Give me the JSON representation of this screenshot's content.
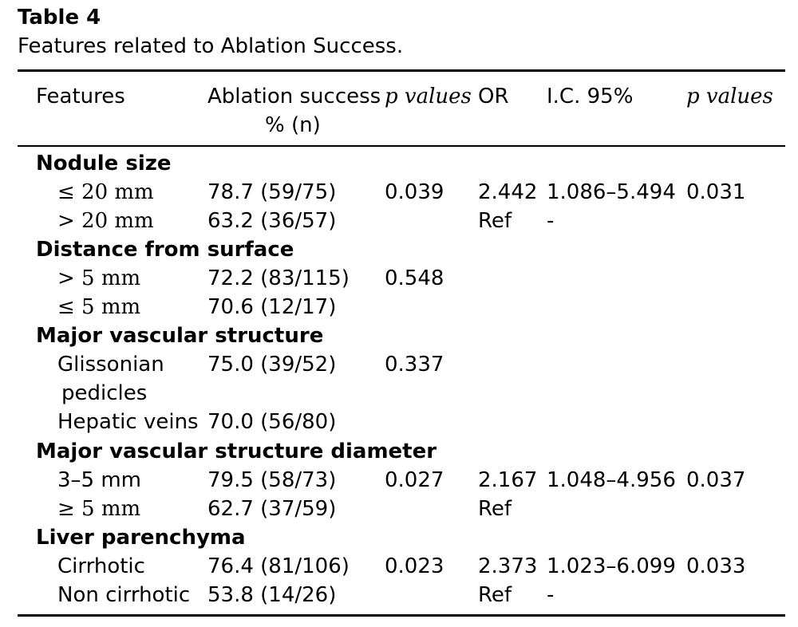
{
  "caption": {
    "title": "Table 4",
    "text": "Features related to Ablation Success."
  },
  "headers": {
    "features": "Features",
    "success_line1": "Ablation success",
    "success_line2": "% (n)",
    "p_values_1": "p values",
    "or": "OR",
    "ci": "I.C. 95%",
    "p_values_2": "p values"
  },
  "groups": [
    {
      "title": "Nodule size",
      "rows": [
        {
          "feature": "≤ 20 mm",
          "success": "78.7 (59/75)",
          "p1": "0.039",
          "or": "2.442",
          "ci": "1.086–5.494",
          "p2": "0.031"
        },
        {
          "feature": "> 20 mm",
          "success": "63.2 (36/57)",
          "p1": "",
          "or": "Ref",
          "ci": "-",
          "p2": ""
        }
      ]
    },
    {
      "title": "Distance from surface",
      "rows": [
        {
          "feature": "> 5 mm",
          "success": "72.2 (83/115)",
          "p1": "0.548",
          "or": "",
          "ci": "",
          "p2": ""
        },
        {
          "feature": "≤ 5 mm",
          "success": "70.6 (12/17)",
          "p1": "",
          "or": "",
          "ci": "",
          "p2": ""
        }
      ]
    },
    {
      "title": "Major vascular structure",
      "rows": [
        {
          "feature": "Glissonian",
          "feature_cont": "pedicles",
          "success": "75.0 (39/52)",
          "p1": "0.337",
          "or": "",
          "ci": "",
          "p2": ""
        },
        {
          "feature": "Hepatic veins",
          "success": "70.0 (56/80)",
          "p1": "",
          "or": "",
          "ci": "",
          "p2": ""
        }
      ]
    },
    {
      "title": "Major vascular structure diameter",
      "rows": [
        {
          "feature": "3–5 mm",
          "success": "79.5 (58/73)",
          "p1": "0.027",
          "or": "2.167",
          "ci": "1.048–4.956",
          "p2": "0.037"
        },
        {
          "feature": "≥ 5 mm",
          "success": "62.7 (37/59)",
          "p1": "",
          "or": "Ref",
          "ci": "",
          "p2": ""
        }
      ]
    },
    {
      "title": "Liver parenchyma",
      "rows": [
        {
          "feature": "Cirrhotic",
          "success": "76.4 (81/106)",
          "p1": "0.023",
          "or": "2.373",
          "ci": "1.023–6.099",
          "p2": "0.033"
        },
        {
          "feature": "Non cirrhotic",
          "success": "53.8 (14/26)",
          "p1": "",
          "or": "Ref",
          "ci": "-",
          "p2": ""
        }
      ]
    }
  ]
}
